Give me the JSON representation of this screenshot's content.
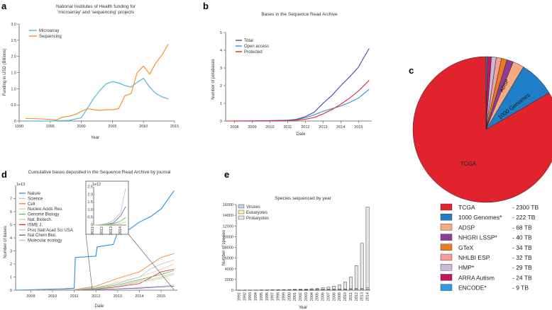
{
  "figure": {
    "panels": {
      "a": "a",
      "b": "b",
      "c": "c",
      "d": "d",
      "e": "e"
    },
    "colors": {
      "microarray": "#4db8d9",
      "sequencing": "#f5922e",
      "total": "#3b4fa0",
      "open": "#3a8fd6",
      "protected": "#e0232d"
    }
  },
  "chart_data": [
    {
      "id": "a",
      "type": "line",
      "title": "National Institutes of Health funding for",
      "title2": "'microarray' and 'sequencing' projects",
      "xlabel": "Year",
      "ylabel": "Funding in USD (Billions)",
      "xlim": [
        1990,
        2015
      ],
      "ylim": [
        0,
        3.0
      ],
      "xticks": [
        "1990",
        "1995",
        "2000",
        "2005",
        "2010",
        "2015"
      ],
      "yticks": [
        "0",
        "0.5",
        "1.0",
        "1.5",
        "2.0",
        "2.5",
        "3.0"
      ],
      "series": [
        {
          "name": "Microarray",
          "x": [
            1991,
            1995,
            1998,
            2000,
            2001,
            2002,
            2003,
            2004,
            2005,
            2006,
            2007,
            2008,
            2009,
            2010,
            2011,
            2012,
            2013,
            2014
          ],
          "y": [
            0.0,
            0.0,
            0.02,
            0.1,
            0.4,
            0.7,
            0.95,
            1.15,
            1.22,
            1.18,
            1.1,
            1.05,
            1.2,
            1.32,
            1.05,
            0.85,
            0.75,
            0.68
          ]
        },
        {
          "name": "Sequencing",
          "x": [
            1991,
            1993,
            1995,
            1996,
            1997,
            1998,
            1999,
            2000,
            2001,
            2002,
            2003,
            2004,
            2005,
            2006,
            2007,
            2008,
            2009,
            2010,
            2011,
            2012,
            2013,
            2014
          ],
          "y": [
            0.08,
            0.07,
            0.05,
            0.03,
            0.12,
            0.15,
            0.2,
            0.3,
            0.38,
            0.35,
            0.33,
            0.35,
            0.35,
            0.38,
            0.78,
            0.85,
            1.5,
            1.7,
            1.45,
            1.8,
            2.05,
            2.38
          ]
        }
      ]
    },
    {
      "id": "b",
      "type": "line",
      "title": "Bases in the Sequence Read Archive",
      "xlabel": "Date",
      "ylabel": "Number of petabases",
      "xlim": [
        2007.5,
        2015.75
      ],
      "ylim": [
        0,
        5
      ],
      "xticks": [
        "2008",
        "2009",
        "2010",
        "2011",
        "2012",
        "2013",
        "2014",
        "2015"
      ],
      "yticks": [
        "0",
        "1",
        "2",
        "3",
        "4",
        "5"
      ],
      "series": [
        {
          "name": "Total",
          "x": [
            2007.5,
            2009,
            2010,
            2011,
            2011.5,
            2012,
            2012.5,
            2013,
            2013.5,
            2014,
            2014.5,
            2015,
            2015.25,
            2015.6
          ],
          "y": [
            0,
            0.01,
            0.02,
            0.05,
            0.1,
            0.25,
            0.5,
            1.0,
            1.45,
            2.0,
            2.5,
            3.05,
            3.5,
            4.1
          ]
        },
        {
          "name": "Open access",
          "x": [
            2007.5,
            2009,
            2010,
            2011,
            2011.5,
            2012,
            2012.5,
            2013,
            2013.5,
            2014,
            2014.5,
            2015,
            2015.3,
            2015.6
          ],
          "y": [
            0,
            0.01,
            0.02,
            0.04,
            0.08,
            0.18,
            0.35,
            0.55,
            0.7,
            0.85,
            1.05,
            1.3,
            1.55,
            1.8
          ]
        },
        {
          "name": "Protected",
          "x": [
            2007.5,
            2009,
            2010,
            2011,
            2011.5,
            2012,
            2012.5,
            2013,
            2013.5,
            2014,
            2014.5,
            2015,
            2015.3,
            2015.6
          ],
          "y": [
            0,
            0.0,
            0.01,
            0.02,
            0.05,
            0.1,
            0.2,
            0.4,
            0.65,
            0.95,
            1.3,
            1.7,
            2.0,
            2.3
          ]
        }
      ]
    },
    {
      "id": "c",
      "type": "pie",
      "labels": [
        "TCGA",
        "1000 Genomes*",
        "ADSP",
        "NHGRI LSSP*",
        "GTeX",
        "NHLBI ESP",
        "HMP*",
        "ARRA Autism",
        "ENCODE*"
      ],
      "values": [
        2300,
        222,
        68,
        40,
        34,
        32,
        29,
        24,
        9
      ],
      "value_labels": [
        "- 2300 TB",
        "- 222 TB",
        "- 68 TB",
        "- 40 TB",
        "- 34 TB",
        "- 32 TB",
        "- 29 TB",
        "- 24 TB",
        "- 9 TB"
      ],
      "colors": [
        "#e0232d",
        "#1f7ec8",
        "#f7a982",
        "#8b3d97",
        "#f07b1e",
        "#f4a09a",
        "#c9b8db",
        "#c2185b",
        "#2a9ee0"
      ],
      "slice_text": {
        "tcga": "TCGA",
        "g1000": "1000 Genomes",
        "adsp": "ADSP"
      }
    },
    {
      "id": "d",
      "type": "line",
      "title": "Cumulative bases deposited in the Sequence Read Archive by journal",
      "xlabel": "Date",
      "ylabel": "Number of bases",
      "scale": "1e13",
      "xlim": [
        2008.3,
        2015.75
      ],
      "ylim": [
        0,
        8
      ],
      "xticks": [
        "2009",
        "2010",
        "2011",
        "2012",
        "2013",
        "2014",
        "2015"
      ],
      "yticks": [
        "0",
        "1",
        "2",
        "3",
        "4",
        "5",
        "6",
        "7"
      ],
      "legend": [
        "Nature",
        "Science",
        "Cell",
        "Nucleic Acids Res.",
        "Genome Biology",
        "Nat. Biotech.",
        "ISME J.",
        "Proc Natl Acad Sci USA",
        "Nat Chem Biol.",
        "Molecular ecology"
      ],
      "colors": [
        "#2b8fd6",
        "#a8c7ea",
        "#f07b1e",
        "#f6c48f",
        "#5fb55a",
        "#b3d98d",
        "#e0232d",
        "#f4a3a3",
        "#6e5aa8",
        "#c7b3de"
      ],
      "series": [
        {
          "name": "Nature",
          "x": [
            2008.3,
            2010.5,
            2011.0,
            2011.05,
            2012.0,
            2012.05,
            2012.8,
            2013.0,
            2013.5,
            2014.0,
            2014.5,
            2015.0,
            2015.6
          ],
          "y": [
            0,
            0.1,
            0.15,
            2.5,
            2.6,
            3.3,
            3.5,
            4.4,
            4.6,
            5.2,
            5.6,
            6.2,
            7.6
          ]
        },
        {
          "name": "Science",
          "x": [
            2008.3,
            2011,
            2012,
            2013,
            2014,
            2014.5,
            2015,
            2015.6
          ],
          "y": [
            0,
            0.05,
            0.2,
            0.5,
            1.0,
            1.6,
            2.0,
            2.3
          ]
        },
        {
          "name": "Cell",
          "x": [
            2008.3,
            2011,
            2012,
            2013,
            2014,
            2015,
            2015.6
          ],
          "y": [
            0,
            0.05,
            0.3,
            0.9,
            1.4,
            2.5,
            2.8
          ]
        },
        {
          "name": "Nucleic Acids Res.",
          "x": [
            2008.3,
            2011,
            2012,
            2013,
            2014,
            2015,
            2015.6
          ],
          "y": [
            0,
            0.05,
            0.2,
            0.6,
            1.0,
            1.6,
            2.0
          ]
        },
        {
          "name": "Genome Biology",
          "x": [
            2008.3,
            2011,
            2012,
            2013,
            2014,
            2015,
            2015.6
          ],
          "y": [
            0,
            0.04,
            0.15,
            0.4,
            0.8,
            1.2,
            1.5
          ]
        },
        {
          "name": "Nat. Biotech.",
          "x": [
            2008.3,
            2011,
            2012,
            2013,
            2014,
            2015,
            2015.6
          ],
          "y": [
            0,
            0.03,
            0.1,
            0.3,
            0.6,
            0.9,
            1.2
          ]
        },
        {
          "name": "ISME J.",
          "x": [
            2008.3,
            2011,
            2012,
            2013,
            2014,
            2015,
            2015.6
          ],
          "y": [
            0,
            0.02,
            0.08,
            0.25,
            0.5,
            1.4,
            1.6
          ]
        },
        {
          "name": "Proc Natl Acad Sci USA",
          "x": [
            2008.3,
            2011,
            2012,
            2013,
            2014,
            2015,
            2015.6
          ],
          "y": [
            0,
            0.02,
            0.1,
            0.3,
            0.7,
            1.0,
            1.3
          ]
        },
        {
          "name": "Nat Chem Biol.",
          "x": [
            2008.3,
            2011,
            2012,
            2013,
            2014,
            2015,
            2015.6
          ],
          "y": [
            0,
            0.01,
            0.05,
            0.1,
            0.15,
            0.25,
            0.3
          ]
        },
        {
          "name": "Molecular ecology",
          "x": [
            2008.3,
            2011,
            2012,
            2013,
            2014,
            2015,
            2015.6
          ],
          "y": [
            0,
            0.01,
            0.04,
            0.1,
            0.2,
            0.3,
            0.4
          ]
        }
      ],
      "inset": {
        "scale": "1e12",
        "ylim": [
          0,
          2.5
        ],
        "yticks": [
          "0",
          "0.5",
          "1.0",
          "1.5",
          "2.0",
          "2.5"
        ],
        "xticks": [
          "2011",
          "2012",
          "2013",
          "2014"
        ]
      }
    },
    {
      "id": "e",
      "type": "bar",
      "title": "Species sequenced by year",
      "xlabel": "Year",
      "ylabel": "Number of species",
      "ylim": [
        0,
        16000
      ],
      "yticks": [
        "0",
        "2000",
        "4000",
        "6000",
        "8000",
        "10000",
        "12000",
        "14000",
        "16000"
      ],
      "categories": [
        "1991",
        "1992",
        "1993",
        "1994",
        "1995",
        "1996",
        "1997",
        "1998",
        "1999",
        "2000",
        "2001",
        "2002",
        "2003",
        "2004",
        "2005",
        "2006",
        "2007",
        "2008",
        "2009",
        "2010",
        "2011",
        "2012",
        "2013",
        "2014"
      ],
      "series": [
        {
          "name": "Viruses",
          "color": "#b9d8e8",
          "values": [
            20,
            30,
            40,
            40,
            50,
            50,
            60,
            70,
            80,
            80,
            90,
            100,
            100,
            110,
            120,
            130,
            140,
            150,
            160,
            170,
            180,
            200,
            220,
            240
          ]
        },
        {
          "name": "Eukaryotes",
          "color": "#f6efb0",
          "values": [
            0,
            0,
            0,
            0,
            0,
            0,
            0,
            0,
            0,
            10,
            10,
            10,
            10,
            20,
            20,
            30,
            30,
            40,
            50,
            60,
            80,
            100,
            150,
            200
          ]
        },
        {
          "name": "Prokaryotes",
          "color": "#e6e6e6",
          "values": [
            0,
            0,
            0,
            0,
            10,
            10,
            20,
            20,
            30,
            40,
            60,
            80,
            100,
            150,
            200,
            300,
            400,
            550,
            800,
            1300,
            2200,
            4300,
            8400,
            15100
          ]
        }
      ]
    }
  ]
}
